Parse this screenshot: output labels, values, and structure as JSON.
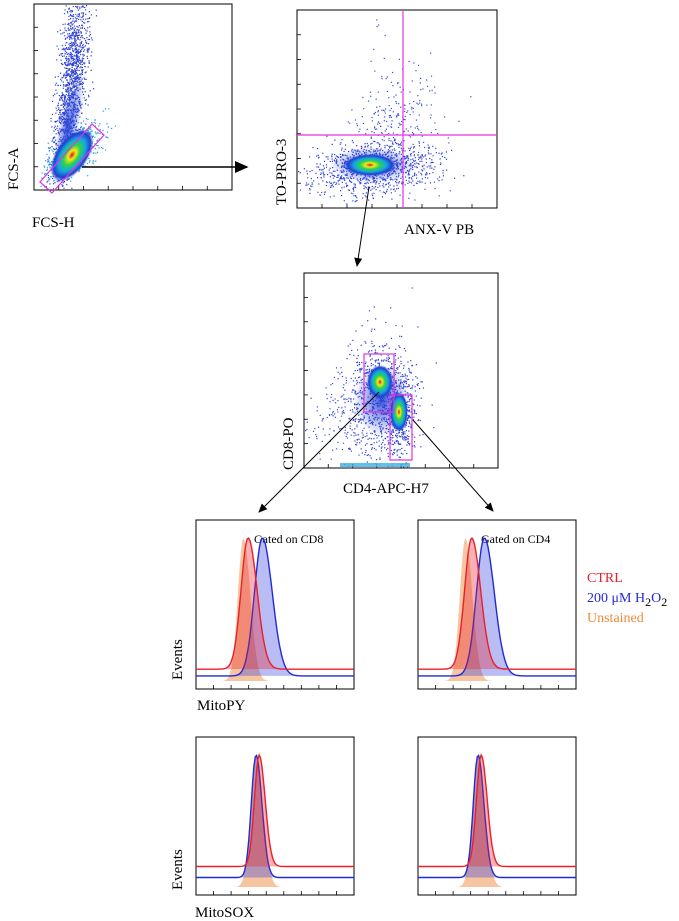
{
  "figure": {
    "scatter_plots": [
      {
        "id": "fcs",
        "x_label": "FCS-H",
        "y_label": "FCS-A"
      },
      {
        "id": "apoptosis",
        "x_label": "ANX-V PB",
        "y_label": "TO-PRO-3"
      },
      {
        "id": "tcell",
        "x_label": "CD4-APC-H7",
        "y_label": "CD8-PO"
      }
    ],
    "histograms": [
      {
        "id": "mitopy-cd8",
        "gate_label": "Gated on CD8",
        "x_label": "MitoPY",
        "y_label": "Events"
      },
      {
        "id": "mitopy-cd4",
        "gate_label": "Gated on CD4",
        "x_label": "",
        "y_label": ""
      },
      {
        "id": "mitosox-cd8",
        "gate_label": "",
        "x_label": "MitoSOX",
        "y_label": "Events"
      },
      {
        "id": "mitosox-cd4",
        "gate_label": "",
        "x_label": "",
        "y_label": ""
      }
    ],
    "legend": [
      {
        "label": "CTRL",
        "color": "#e8202a"
      },
      {
        "label_prefix": "200 μM H",
        "sub1": "2",
        "mid": "O",
        "sub2": "2",
        "color": "#1f2bd6"
      },
      {
        "label": "Unstained",
        "color": "#f08a3c"
      }
    ]
  },
  "chart_data": [
    {
      "type": "scatter",
      "title": "",
      "xlabel": "FCS-H",
      "ylabel": "FCS-A",
      "description_gate": "diagonal singlet gate",
      "density_center": {
        "x": 0.1,
        "y": 0.12
      }
    },
    {
      "type": "scatter",
      "xlabel": "ANX-V PB",
      "ylabel": "TO-PRO-3",
      "quadrant_gates": true,
      "main_population": {
        "x": 0.35,
        "y": 0.3
      }
    },
    {
      "type": "scatter",
      "xlabel": "CD4-APC-H7",
      "ylabel": "CD8-PO",
      "gates": [
        "CD8",
        "CD4"
      ],
      "populations": [
        {
          "name": "CD8",
          "x": 0.35,
          "y": 0.55
        },
        {
          "name": "CD4",
          "x": 0.5,
          "y": 0.38
        }
      ]
    },
    {
      "type": "area",
      "panel": "MitoPY / CD8",
      "series": [
        {
          "name": "Unstained",
          "peak": 0.3,
          "width": 0.035,
          "baseline": 0.0
        },
        {
          "name": "CTRL",
          "peak": 0.33,
          "width": 0.045,
          "baseline": 0.07
        },
        {
          "name": "200 μM H2O2",
          "peak": 0.42,
          "width": 0.05,
          "baseline": 0.03
        }
      ]
    },
    {
      "type": "area",
      "panel": "MitoPY / CD4",
      "series": [
        {
          "name": "Unstained",
          "peak": 0.3,
          "width": 0.035,
          "baseline": 0.0
        },
        {
          "name": "CTRL",
          "peak": 0.34,
          "width": 0.045,
          "baseline": 0.07
        },
        {
          "name": "200 μM H2O2",
          "peak": 0.42,
          "width": 0.05,
          "baseline": 0.03
        }
      ]
    },
    {
      "type": "area",
      "panel": "MitoSOX / CD8",
      "series": [
        {
          "name": "Unstained",
          "peak": 0.38,
          "width": 0.035,
          "baseline": 0.0
        },
        {
          "name": "CTRL",
          "peak": 0.4,
          "width": 0.03,
          "baseline": 0.13
        },
        {
          "name": "200 μM H2O2",
          "peak": 0.38,
          "width": 0.03,
          "baseline": 0.06
        }
      ]
    },
    {
      "type": "area",
      "panel": "MitoSOX / CD4",
      "series": [
        {
          "name": "Unstained",
          "peak": 0.38,
          "width": 0.035,
          "baseline": 0.0
        },
        {
          "name": "CTRL",
          "peak": 0.4,
          "width": 0.03,
          "baseline": 0.13
        },
        {
          "name": "200 μM H2O2",
          "peak": 0.38,
          "width": 0.03,
          "baseline": 0.06
        }
      ]
    }
  ]
}
